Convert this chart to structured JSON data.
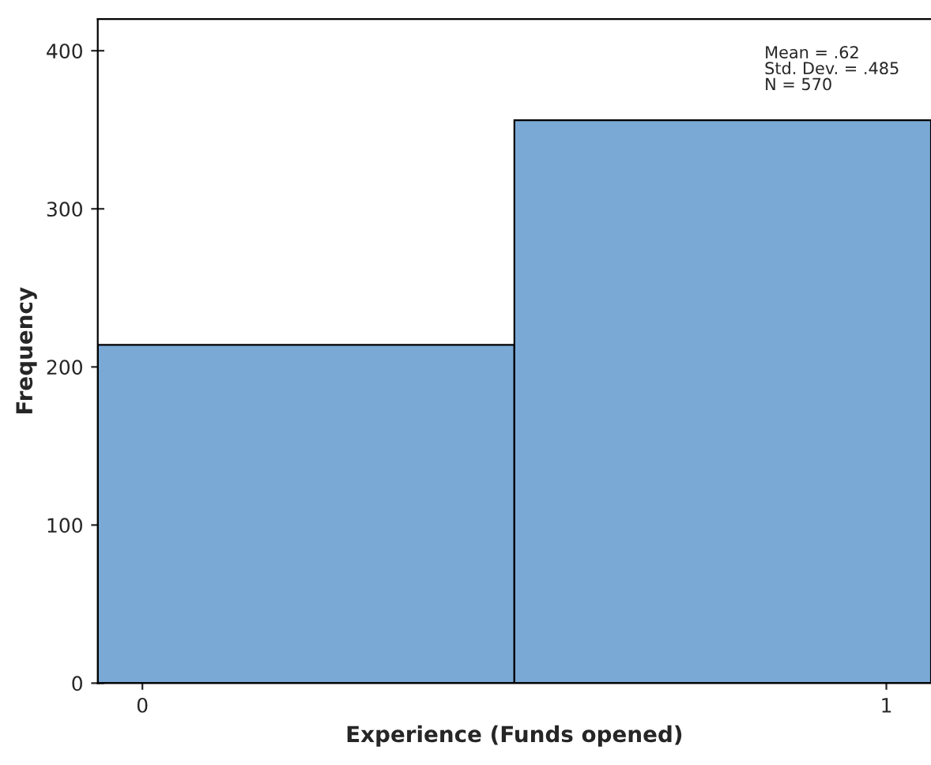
{
  "chart_data": {
    "type": "histogram",
    "xlabel": "Experience (Funds opened)",
    "ylabel": "Frequency",
    "bins": [
      -0.06,
      0.5,
      1.06
    ],
    "values": [
      214,
      356
    ],
    "color": "#7ba9d6",
    "xlim": [
      -0.06,
      1.06
    ],
    "xticks": [
      0,
      1
    ],
    "ylim": [
      0,
      420
    ],
    "yticks": [
      0,
      100,
      200,
      300,
      400
    ],
    "annotations": [
      "Mean = .62",
      "Std. Dev. = .485",
      "N = 570"
    ],
    "grid": false
  }
}
